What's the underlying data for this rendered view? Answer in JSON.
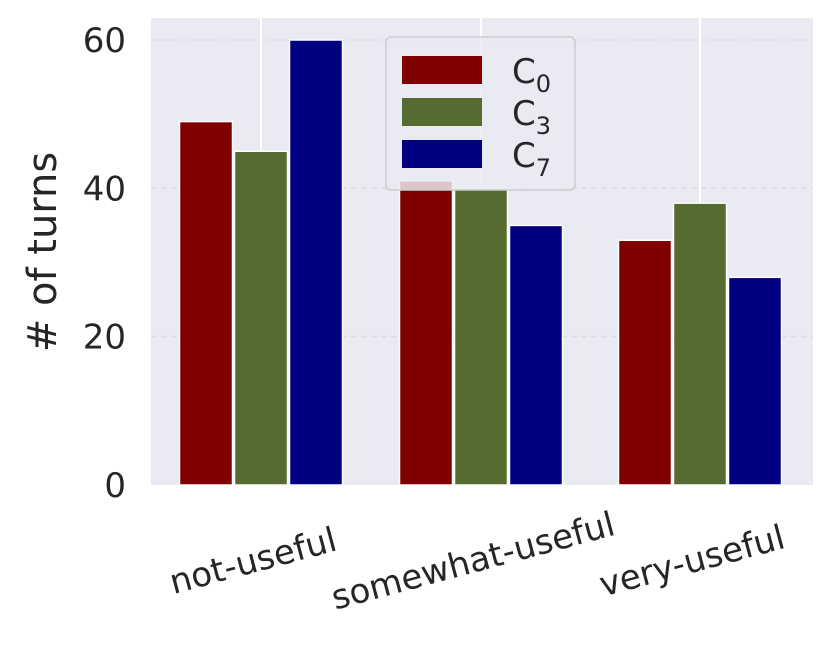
{
  "chart_data": {
    "type": "bar",
    "title": "",
    "xlabel": "",
    "ylabel": "# of turns",
    "categories": [
      "not-useful",
      "somewhat-useful",
      "very-useful"
    ],
    "series": [
      {
        "name": "C",
        "subscript": "0",
        "color": "#800000",
        "values": [
          49,
          41,
          33
        ]
      },
      {
        "name": "C",
        "subscript": "3",
        "color": "#556B2F",
        "values": [
          45,
          40,
          38
        ]
      },
      {
        "name": "C",
        "subscript": "7",
        "color": "#000080",
        "values": [
          60,
          35,
          28
        ]
      }
    ],
    "ylim": [
      0,
      63
    ],
    "yticks": [
      0,
      20,
      40,
      60
    ],
    "grid": true,
    "legend_position": "upper-center",
    "background_color": "#EAEAF2",
    "grid_color": "#ffffff"
  }
}
